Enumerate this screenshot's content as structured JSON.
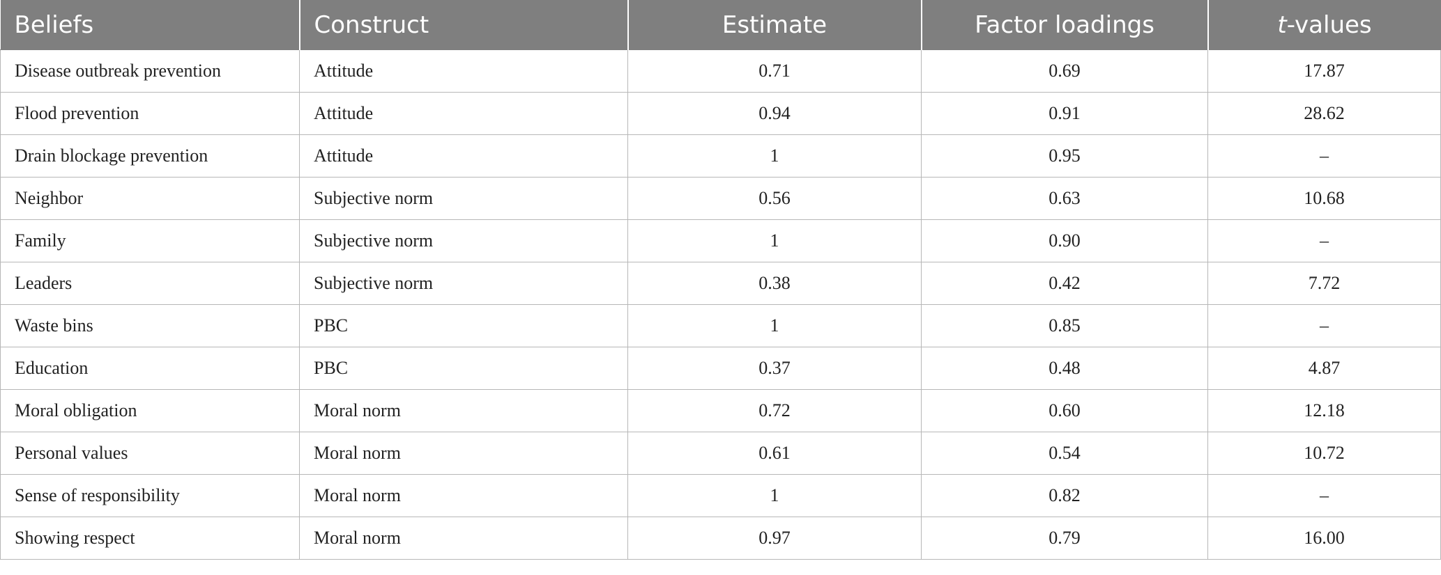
{
  "table": {
    "headers": {
      "beliefs": "Beliefs",
      "construct": "Construct",
      "estimate": "Estimate",
      "factor_loadings": "Factor loadings",
      "t_values_italic": "t",
      "t_values_suffix": "-values"
    },
    "rows": [
      {
        "beliefs": "Disease outbreak prevention",
        "construct": "Attitude",
        "estimate": "0.71",
        "factor_loadings": "0.69",
        "t_values": "17.87"
      },
      {
        "beliefs": "Flood prevention",
        "construct": "Attitude",
        "estimate": "0.94",
        "factor_loadings": "0.91",
        "t_values": "28.62"
      },
      {
        "beliefs": "Drain blockage prevention",
        "construct": "Attitude",
        "estimate": "1",
        "factor_loadings": "0.95",
        "t_values": "–"
      },
      {
        "beliefs": "Neighbor",
        "construct": "Subjective norm",
        "estimate": "0.56",
        "factor_loadings": "0.63",
        "t_values": "10.68"
      },
      {
        "beliefs": "Family",
        "construct": "Subjective norm",
        "estimate": "1",
        "factor_loadings": "0.90",
        "t_values": "–"
      },
      {
        "beliefs": "Leaders",
        "construct": "Subjective norm",
        "estimate": "0.38",
        "factor_loadings": "0.42",
        "t_values": "7.72"
      },
      {
        "beliefs": "Waste bins",
        "construct": "PBC",
        "estimate": "1",
        "factor_loadings": "0.85",
        "t_values": "–"
      },
      {
        "beliefs": "Education",
        "construct": "PBC",
        "estimate": "0.37",
        "factor_loadings": "0.48",
        "t_values": "4.87"
      },
      {
        "beliefs": "Moral obligation",
        "construct": "Moral norm",
        "estimate": "0.72",
        "factor_loadings": "0.60",
        "t_values": "12.18"
      },
      {
        "beliefs": "Personal values",
        "construct": "Moral norm",
        "estimate": "0.61",
        "factor_loadings": "0.54",
        "t_values": "10.72"
      },
      {
        "beliefs": "Sense of responsibility",
        "construct": "Moral norm",
        "estimate": "1",
        "factor_loadings": "0.82",
        "t_values": "–"
      },
      {
        "beliefs": "Showing respect",
        "construct": "Moral norm",
        "estimate": "0.97",
        "factor_loadings": "0.79",
        "t_values": "16.00"
      }
    ]
  }
}
